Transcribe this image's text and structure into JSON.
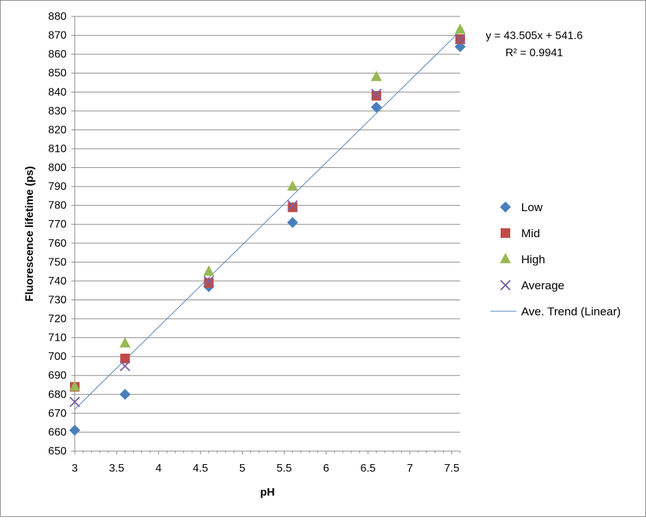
{
  "chart_data": {
    "type": "scatter",
    "title": "",
    "xlabel": "pH",
    "ylabel": "Fluorescence lifetime (ps)",
    "xlim": [
      3,
      7.6
    ],
    "ylim": [
      650,
      880
    ],
    "xticks": [
      "3",
      "3.5",
      "4",
      "4.5",
      "5",
      "5.5",
      "6",
      "6.5",
      "7",
      "7.5"
    ],
    "yticks": [
      "650",
      "660",
      "670",
      "680",
      "690",
      "700",
      "710",
      "720",
      "730",
      "740",
      "750",
      "760",
      "770",
      "780",
      "790",
      "800",
      "810",
      "820",
      "830",
      "840",
      "850",
      "860",
      "870",
      "880"
    ],
    "grid": "horizontal major gridlines",
    "legend_position": "right",
    "x": [
      3,
      3.6,
      4.6,
      5.6,
      6.6,
      7.6
    ],
    "series": [
      {
        "name": "Low",
        "marker": "diamond",
        "color": "#4A7EBB",
        "values": [
          661,
          680,
          737,
          771,
          832,
          864
        ]
      },
      {
        "name": "Mid",
        "marker": "square",
        "color": "#BE4B48",
        "values": [
          684,
          699,
          739,
          779,
          838,
          868
        ]
      },
      {
        "name": "High",
        "marker": "triangle",
        "color": "#98B954",
        "values": [
          684,
          707,
          745,
          790,
          848,
          873
        ]
      },
      {
        "name": "Average",
        "marker": "x",
        "color": "#7D60A0",
        "values": [
          676,
          695,
          740,
          780,
          839,
          868
        ]
      }
    ],
    "trendline": {
      "name": "Ave. Trend (Linear)",
      "color": "#4A7EBB",
      "slope": 43.505,
      "intercept": 541.6,
      "equation": "y = 43.505x + 541.6",
      "r2": "R² = 0.9941"
    }
  }
}
